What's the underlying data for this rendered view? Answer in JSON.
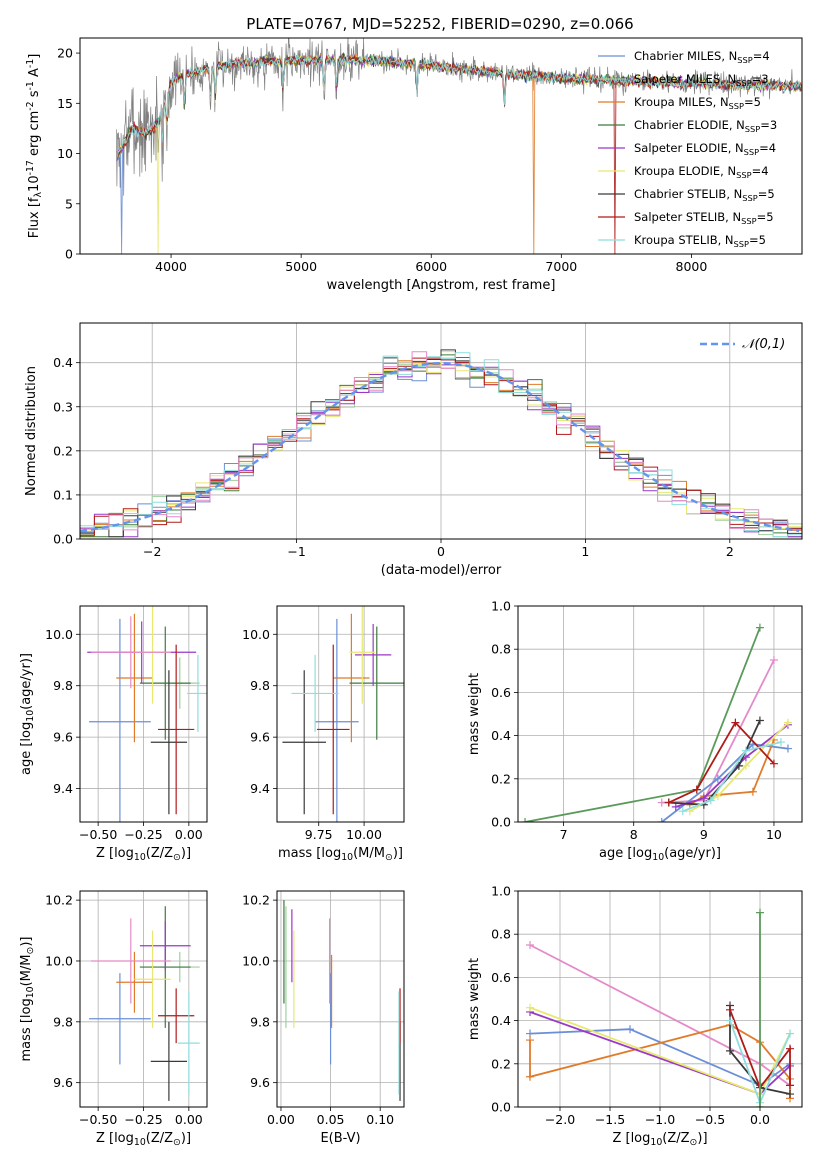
{
  "figure": {
    "title": "PLATE=0767, MJD=52252, FIBERID=0290, z=0.066"
  },
  "colors": {
    "Chabrier MILES": "#6b8fd6",
    "Salpeter MILES": "#9dd19d",
    "Kroupa MILES": "#e07b2a",
    "Chabrier ELODIE": "#3d7a3d",
    "Salpeter ELODIE": "#9a39c7",
    "Kroupa ELODIE": "#e8e870",
    "Chabrier STELIB": "#3a3a3a",
    "Salpeter STELIB": "#b01a1a",
    "Kroupa STELIB": "#8fdede",
    "fit_pink": "#e58ac8",
    "fit_green": "#5a9a5a",
    "data_grey": "#808080",
    "normal_curve": "#6495ed"
  },
  "legend_spectrum": [
    "Chabrier MILES, N$_{SSP}$=4",
    "Salpeter MILES, N$_{SSP}$=3",
    "Kroupa MILES, N$_{SSP}$=5",
    "Chabrier ELODIE, N$_{SSP}$=3",
    "Salpeter ELODIE, N$_{SSP}$=4",
    "Kroupa ELODIE, N$_{SSP}$=4",
    "Chabrier STELIB, N$_{SSP}$=5",
    "Salpeter STELIB, N$_{SSP}$=5",
    "Kroupa STELIB, N$_{SSP}$=5"
  ],
  "legend_hist": "$\\mathcal{N}(0,1)$",
  "chart_data": [
    {
      "id": "spectrum",
      "type": "line",
      "xlabel": "wavelength [Angstrom, rest frame]",
      "ylabel": "Flux [f$_\\lambda$10$^{-17}$ erg cm$^{-2}$ s$^{-1}$ A$^{-1}$]",
      "xlim": [
        3300,
        8850
      ],
      "ylim": [
        0,
        21.5
      ],
      "xticks": [
        4000,
        5000,
        6000,
        7000,
        8000
      ],
      "yticks": [
        0,
        5,
        10,
        15,
        20
      ],
      "grid": false,
      "legend": "top-right",
      "continuum": {
        "x": [
          3580,
          3700,
          3800,
          3900,
          3950,
          4000,
          4100,
          4300,
          4500,
          5000,
          5500,
          6000,
          6500,
          7000,
          7500,
          8000,
          8500,
          8850
        ],
        "y": [
          9.5,
          12.5,
          12.0,
          13.0,
          15.0,
          17.0,
          17.8,
          18.5,
          19.0,
          19.3,
          19.3,
          18.8,
          18.0,
          17.5,
          17.2,
          17.0,
          16.8,
          16.7
        ]
      }
    },
    {
      "id": "residual_hist",
      "type": "line",
      "xlabel": "(data-model)/error",
      "ylabel": "Normed distribution",
      "xlim": [
        -2.5,
        2.5
      ],
      "ylim": [
        0,
        0.49
      ],
      "xticks": [
        -2,
        -1,
        0,
        1,
        2
      ],
      "yticks": [
        0.0,
        0.1,
        0.2,
        0.3,
        0.4
      ],
      "grid": true,
      "legend": "top-right"
    },
    {
      "id": "age_vs_Z",
      "type": "scatter",
      "xlabel": "Z [log$_{10}$($Z/Z_\\odot$)]",
      "ylabel": "age  [log$_{10}$($age/yr$)]",
      "xlim": [
        -0.6,
        0.1
      ],
      "ylim": [
        9.27,
        10.11
      ],
      "xticks": [
        -0.5,
        -0.25,
        0.0
      ],
      "yticks": [
        9.4,
        9.6,
        9.8,
        10.0
      ],
      "grid": true,
      "errorbars": [
        {
          "series": "Chabrier MILES",
          "x": -0.38,
          "xerr": 0.17,
          "y": 9.66,
          "yerr": 0.4
        },
        {
          "series": "Salpeter MILES",
          "x": -0.05,
          "xerr": 0.11,
          "y": 9.81,
          "yerr": 0.1
        },
        {
          "series": "Kroupa MILES",
          "x": -0.3,
          "xerr": 0.1,
          "y": 9.83,
          "yerr": 0.25
        },
        {
          "series": "Chabrier ELODIE",
          "x": -0.13,
          "xerr": 0.14,
          "y": 9.81,
          "yerr": 0.22
        },
        {
          "series": "Salpeter ELODIE",
          "x": -0.26,
          "xerr": 0.3,
          "y": 9.93,
          "yerr": 0.12
        },
        {
          "series": "Kroupa ELODIE",
          "x": -0.2,
          "xerr": 0.1,
          "y": 9.93,
          "yerr": 0.2
        },
        {
          "series": "Chabrier STELIB",
          "x": -0.11,
          "xerr": 0.1,
          "y": 9.58,
          "yerr": 0.28
        },
        {
          "series": "Salpeter STELIB",
          "x": -0.07,
          "xerr": 0.1,
          "y": 9.63,
          "yerr": 0.33
        },
        {
          "series": "Kroupa STELIB",
          "x": 0.05,
          "xerr": 0.06,
          "y": 9.77,
          "yerr": 0.15
        },
        {
          "series": "fit_pink",
          "x": -0.32,
          "xerr": 0.22,
          "y": 9.93,
          "yerr": 0.14
        }
      ]
    },
    {
      "id": "age_vs_mass",
      "type": "scatter",
      "xlabel": "mass [log$_{10}$($M/M_\\odot$)]",
      "ylabel": "",
      "xlim": [
        9.52,
        10.22
      ],
      "ylim": [
        9.27,
        10.11
      ],
      "xticks": [
        9.75,
        10.0
      ],
      "yticks": [
        9.4,
        9.6,
        9.8,
        10.0
      ],
      "grid": true,
      "errorbars": [
        {
          "series": "Chabrier MILES",
          "x": 9.85,
          "xerr": 0.12,
          "y": 9.66,
          "yerr": 0.4
        },
        {
          "series": "Kroupa MILES",
          "x": 9.93,
          "xerr": 0.1,
          "y": 9.83,
          "yerr": 0.25
        },
        {
          "series": "Chabrier ELODIE",
          "x": 10.07,
          "xerr": 0.15,
          "y": 9.81,
          "yerr": 0.22
        },
        {
          "series": "Salpeter ELODIE",
          "x": 10.05,
          "xerr": 0.1,
          "y": 9.92,
          "yerr": 0.12
        },
        {
          "series": "Kroupa ELODIE",
          "x": 9.99,
          "xerr": 0.07,
          "y": 9.93,
          "yerr": 0.2
        },
        {
          "series": "Chabrier STELIB",
          "x": 9.67,
          "xerr": 0.12,
          "y": 9.58,
          "yerr": 0.28
        },
        {
          "series": "Salpeter STELIB",
          "x": 9.83,
          "xerr": 0.09,
          "y": 9.63,
          "yerr": 0.33
        },
        {
          "series": "Kroupa STELIB",
          "x": 9.73,
          "xerr": 0.13,
          "y": 9.77,
          "yerr": 0.15
        }
      ]
    },
    {
      "id": "mass_weight_vs_age",
      "type": "line",
      "xlabel": "age  [log$_{10}$($age/yr$)]",
      "ylabel": "mass weight",
      "xlim": [
        6.35,
        10.4
      ],
      "ylim": [
        0,
        1.0
      ],
      "xticks": [
        7,
        8,
        9,
        10
      ],
      "yticks": [
        0.0,
        0.2,
        0.4,
        0.6,
        0.8,
        1.0
      ],
      "grid": true,
      "series": [
        {
          "series": "fit_green",
          "x": [
            6.45,
            8.9,
            9.8
          ],
          "y": [
            0.0,
            0.15,
            0.9
          ]
        },
        {
          "series": "fit_pink",
          "x": [
            8.4,
            9.0,
            10.0
          ],
          "y": [
            0.09,
            0.1,
            0.75
          ]
        },
        {
          "series": "Chabrier MILES",
          "x": [
            8.4,
            9.2,
            9.7,
            10.2
          ],
          "y": [
            0.0,
            0.2,
            0.36,
            0.34
          ]
        },
        {
          "series": "Kroupa MILES",
          "x": [
            8.8,
            9.0,
            9.7,
            10.0
          ],
          "y": [
            0.08,
            0.12,
            0.14,
            0.38
          ]
        },
        {
          "series": "Salpeter ELODIE",
          "x": [
            8.6,
            9.0,
            9.6,
            10.2
          ],
          "y": [
            0.07,
            0.11,
            0.3,
            0.45
          ]
        },
        {
          "series": "Kroupa ELODIE",
          "x": [
            8.8,
            9.2,
            9.6,
            10.2
          ],
          "y": [
            0.05,
            0.12,
            0.26,
            0.46
          ]
        },
        {
          "series": "Chabrier STELIB",
          "x": [
            8.5,
            9.0,
            9.5,
            9.8
          ],
          "y": [
            0.09,
            0.08,
            0.26,
            0.47
          ]
        },
        {
          "series": "Salpeter STELIB",
          "x": [
            8.5,
            8.9,
            9.45,
            10.0
          ],
          "y": [
            0.09,
            0.15,
            0.46,
            0.27
          ]
        },
        {
          "series": "Kroupa STELIB",
          "x": [
            8.7,
            9.1,
            9.6,
            10.1
          ],
          "y": [
            0.05,
            0.1,
            0.33,
            0.37
          ]
        }
      ]
    },
    {
      "id": "mass_vs_Z",
      "type": "scatter",
      "xlabel": "Z [log$_{10}$($Z/Z_\\odot$)]",
      "ylabel": "mass [log$_{10}$($M/M_\\odot$)]",
      "xlim": [
        -0.6,
        0.1
      ],
      "ylim": [
        9.52,
        10.23
      ],
      "xticks": [
        -0.5,
        -0.25,
        0.0
      ],
      "yticks": [
        9.6,
        9.8,
        10.0,
        10.2
      ],
      "grid": true,
      "errorbars": [
        {
          "series": "Chabrier MILES",
          "x": -0.38,
          "xerr": 0.17,
          "y": 9.81,
          "yerr": 0.15
        },
        {
          "series": "Salpeter MILES",
          "x": -0.05,
          "xerr": 0.11,
          "y": 9.98,
          "yerr": 0.05
        },
        {
          "series": "Kroupa MILES",
          "x": -0.3,
          "xerr": 0.1,
          "y": 9.93,
          "yerr": 0.1
        },
        {
          "series": "Chabrier ELODIE",
          "x": -0.13,
          "xerr": 0.14,
          "y": 9.98,
          "yerr": 0.2
        },
        {
          "series": "Salpeter ELODIE",
          "x": -0.13,
          "xerr": 0.14,
          "y": 10.05,
          "yerr": 0.08
        },
        {
          "series": "Kroupa ELODIE",
          "x": -0.2,
          "xerr": 0.1,
          "y": 9.94,
          "yerr": 0.16
        },
        {
          "series": "Chabrier STELIB",
          "x": -0.11,
          "xerr": 0.1,
          "y": 9.67,
          "yerr": 0.13
        },
        {
          "series": "Salpeter STELIB",
          "x": -0.07,
          "xerr": 0.1,
          "y": 9.82,
          "yerr": 0.09
        },
        {
          "series": "Kroupa STELIB",
          "x": 0.0,
          "xerr": 0.06,
          "y": 9.73,
          "yerr": 0.17
        },
        {
          "series": "fit_pink",
          "x": -0.32,
          "xerr": 0.22,
          "y": 10.0,
          "yerr": 0.14
        }
      ]
    },
    {
      "id": "mass_vs_ebv",
      "type": "scatter",
      "xlabel": "E(B-V)",
      "ylabel": "",
      "xlim": [
        -0.004,
        0.124
      ],
      "ylim": [
        9.52,
        10.23
      ],
      "xticks": [
        0.0,
        0.05,
        0.1
      ],
      "yticks": [
        9.6,
        9.8,
        10.0,
        10.2
      ],
      "grid": true,
      "errorbars": [
        {
          "series": "Chabrier MILES",
          "x": 0.05,
          "y": 9.81,
          "yerr": 0.15
        },
        {
          "series": "Salpeter MILES",
          "x": 0.005,
          "y": 9.98,
          "yerr": 0.2
        },
        {
          "series": "Kroupa MILES",
          "x": 0.051,
          "y": 9.9,
          "yerr": 0.12
        },
        {
          "series": "Chabrier ELODIE",
          "x": 0.003,
          "y": 10.03,
          "yerr": 0.17
        },
        {
          "series": "Salpeter ELODIE",
          "x": 0.011,
          "y": 10.05,
          "yerr": 0.12
        },
        {
          "series": "Kroupa ELODIE",
          "x": 0.013,
          "y": 9.94,
          "yerr": 0.16
        },
        {
          "series": "Chabrier STELIB",
          "x": 0.12,
          "y": 9.67,
          "yerr": 0.13
        },
        {
          "series": "Salpeter STELIB",
          "x": 0.12,
          "y": 9.82,
          "yerr": 0.09
        },
        {
          "series": "Kroupa STELIB",
          "x": 0.119,
          "y": 9.73,
          "yerr": 0.17
        },
        {
          "series": "fit_pink",
          "x": 0.049,
          "y": 10.0,
          "yerr": 0.14
        }
      ]
    },
    {
      "id": "mass_weight_vs_Z",
      "type": "line",
      "xlabel": "Z [log$_{10}$($Z/Z_\\odot$)]",
      "ylabel": "mass weight",
      "xlim": [
        -2.42,
        0.42
      ],
      "ylim": [
        0,
        1.0
      ],
      "xticks": [
        -2.0,
        -1.5,
        -1.0,
        -0.5,
        0.0
      ],
      "yticks": [
        0.0,
        0.2,
        0.4,
        0.6,
        0.8,
        1.0
      ],
      "grid": true,
      "series": [
        {
          "series": "fit_pink",
          "x": [
            -2.3,
            0.0,
            0.3
          ],
          "y": [
            0.75,
            0.2,
            0.1
          ]
        },
        {
          "series": "Chabrier MILES",
          "x": [
            -2.3,
            -1.3,
            0.0,
            0.3
          ],
          "y": [
            0.34,
            0.36,
            0.1,
            0.2
          ]
        },
        {
          "series": "Kroupa MILES",
          "x": [
            -2.3,
            -2.3,
            -0.3,
            0.0,
            0.3,
            0.3
          ],
          "y": [
            0.31,
            0.14,
            0.38,
            0.3,
            0.13,
            0.04
          ]
        },
        {
          "series": "Salpeter ELODIE",
          "x": [
            -2.3,
            0.0,
            0.3
          ],
          "y": [
            0.44,
            0.06,
            0.19
          ]
        },
        {
          "series": "Kroupa ELODIE",
          "x": [
            -2.3,
            0.0,
            0.3
          ],
          "y": [
            0.46,
            0.06,
            0.34
          ]
        },
        {
          "series": "Chabrier STELIB",
          "x": [
            -0.3,
            -0.3,
            0.0,
            0.3
          ],
          "y": [
            0.47,
            0.26,
            0.09,
            0.06
          ]
        },
        {
          "series": "Salpeter STELIB",
          "x": [
            -0.3,
            0.0,
            0.3,
            0.3
          ],
          "y": [
            0.45,
            0.09,
            0.27,
            0.1
          ]
        },
        {
          "series": "Kroupa STELIB",
          "x": [
            -0.3,
            0.0,
            0.3
          ],
          "y": [
            0.4,
            0.02,
            0.34
          ]
        },
        {
          "series": "fit_green",
          "x": [
            0.0,
            0.0
          ],
          "y": [
            0.9,
            0.0
          ]
        }
      ]
    }
  ]
}
